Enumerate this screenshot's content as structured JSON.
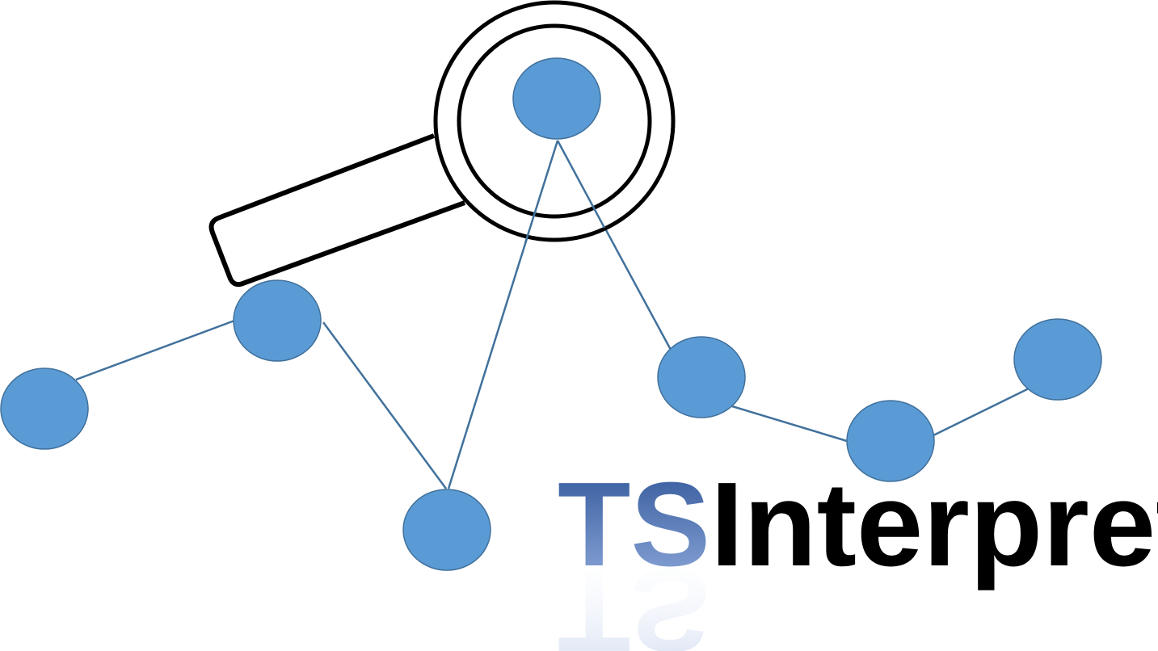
{
  "logo": {
    "prefix": "TS",
    "suffix": "Interpret"
  },
  "colors": {
    "node_fill": "#5b9bd5",
    "node_stroke": "#41719c",
    "edge": "#41719c",
    "magnifier": "#000000",
    "text_dark": "#000000",
    "prefix_gradient_top": "#2f5597",
    "prefix_gradient_bottom": "#8faadc"
  }
}
